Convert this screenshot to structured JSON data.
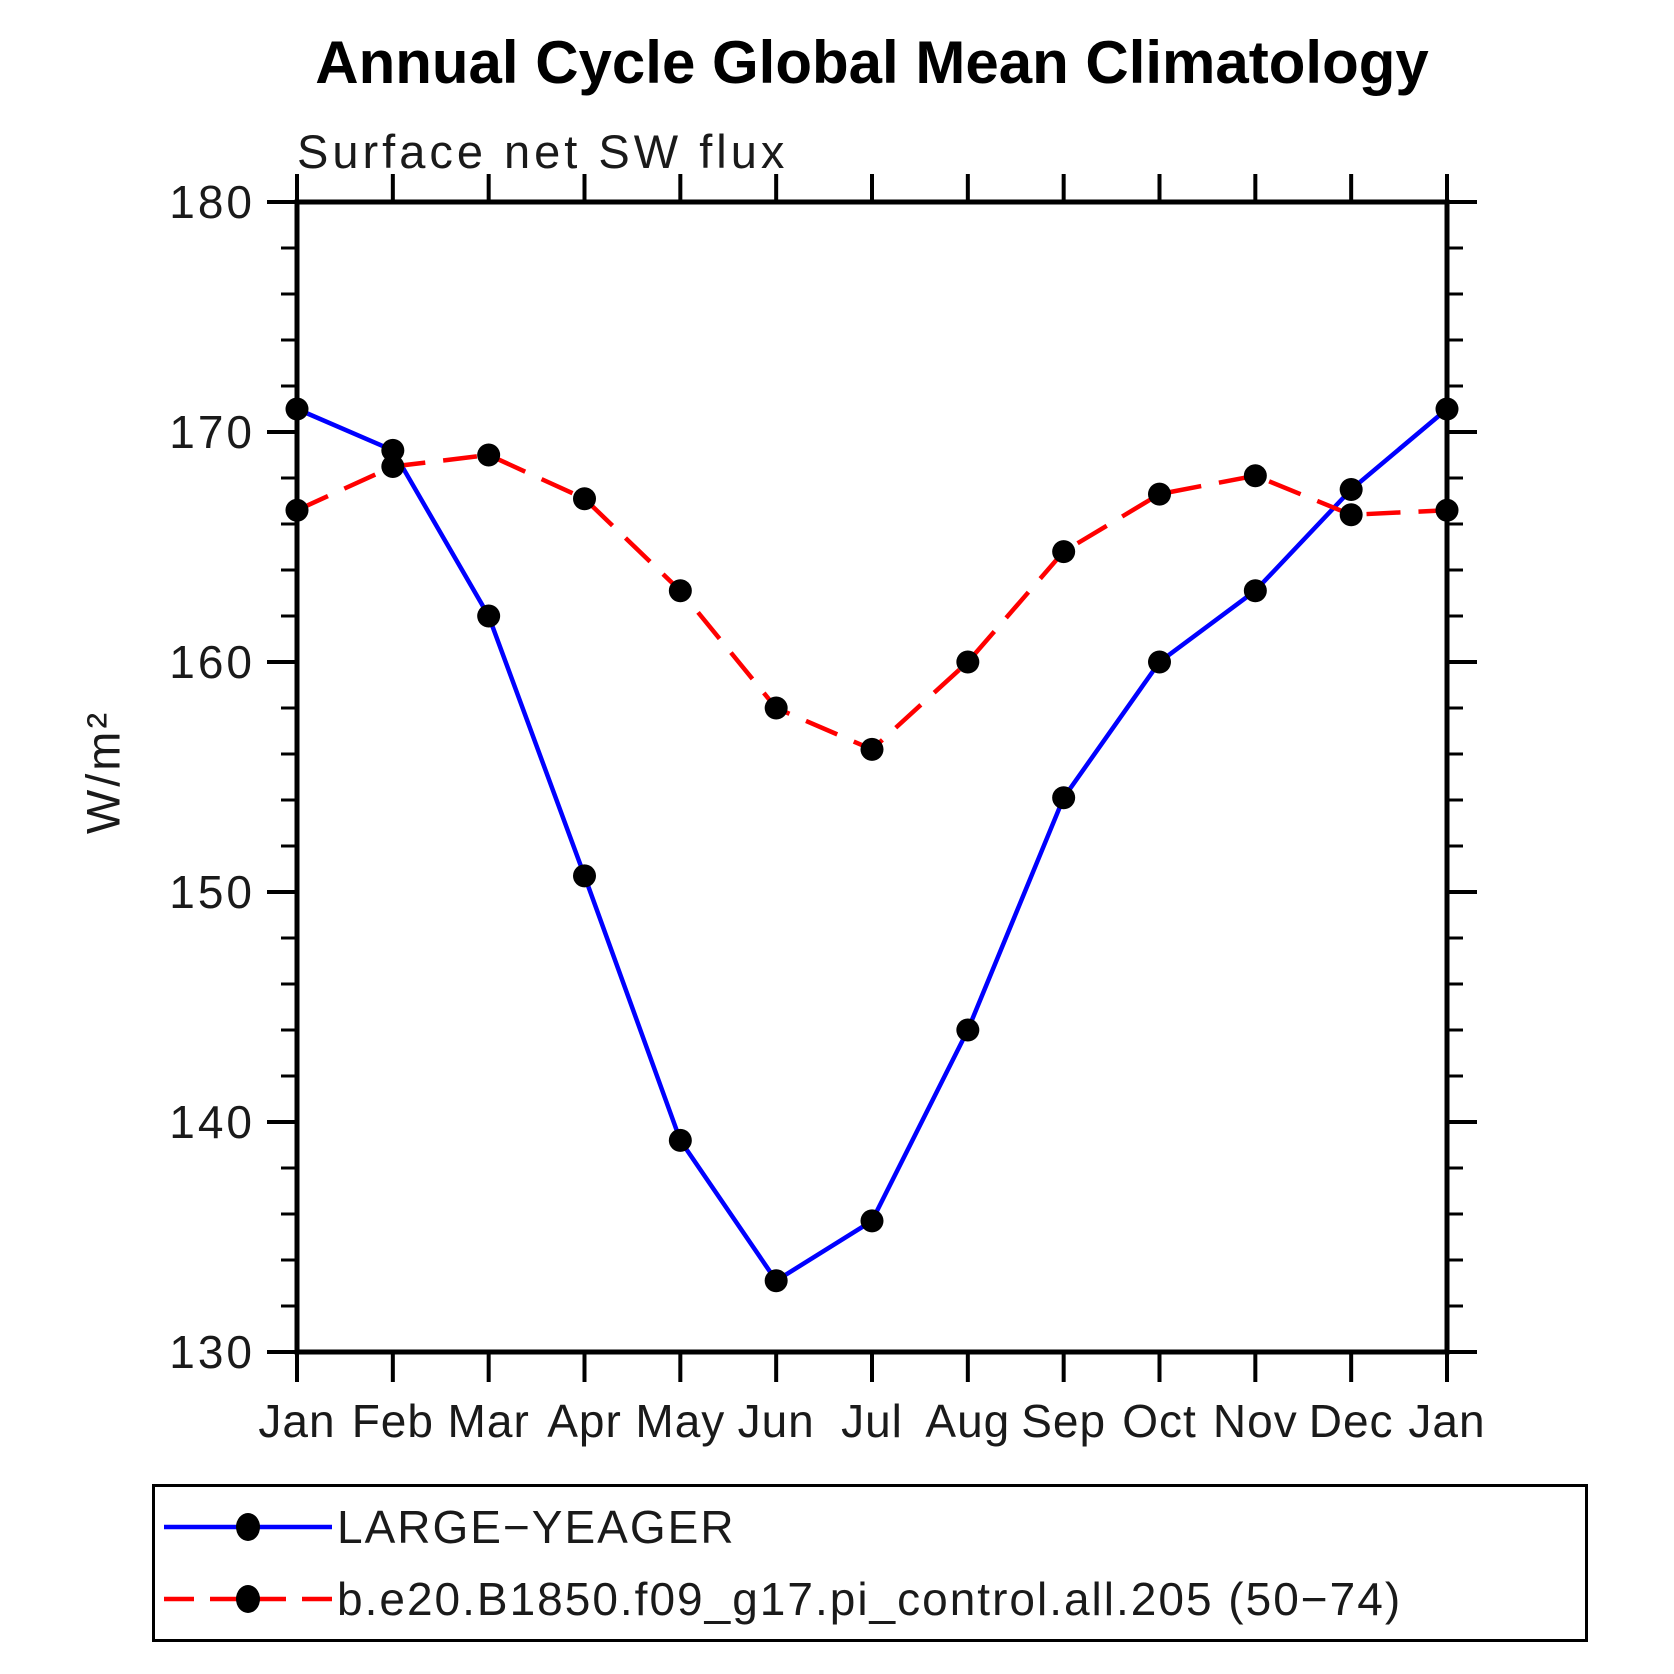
{
  "title": "Annual Cycle Global Mean Climatology",
  "subtitle": "Surface net SW flux",
  "y_axis_label": "W/m²",
  "chart_data": {
    "type": "line",
    "title": "Annual Cycle Global Mean Climatology",
    "subtitle": "Surface net SW flux",
    "xlabel": "",
    "ylabel": "W/m²",
    "ylim": [
      130,
      180
    ],
    "y_major_ticks": [
      130,
      140,
      150,
      160,
      170,
      180
    ],
    "y_minor_tick_step": 2,
    "x_categories": [
      "Jan",
      "Feb",
      "Mar",
      "Apr",
      "May",
      "Jun",
      "Jul",
      "Aug",
      "Sep",
      "Oct",
      "Nov",
      "Dec",
      "Jan"
    ],
    "grid": false,
    "legend_position": "bottom-left-box",
    "series": [
      {
        "name": "LARGE−YEAGER",
        "line_style": "solid",
        "color": "#0000ff",
        "marker": "filled-circle",
        "marker_color": "#000000",
        "values": [
          171.0,
          169.2,
          162.0,
          150.7,
          139.2,
          133.1,
          135.7,
          144.0,
          154.1,
          160.0,
          163.1,
          167.5,
          171.0
        ]
      },
      {
        "name": "b.e20.B1850.f09_g17.pi_control.all.205 (50−74)",
        "line_style": "dashed",
        "color": "#ff0000",
        "marker": "filled-circle",
        "marker_color": "#000000",
        "values": [
          166.6,
          168.5,
          169.0,
          167.1,
          163.1,
          158.0,
          156.2,
          160.0,
          164.8,
          167.3,
          168.1,
          166.4,
          166.6
        ]
      }
    ]
  }
}
